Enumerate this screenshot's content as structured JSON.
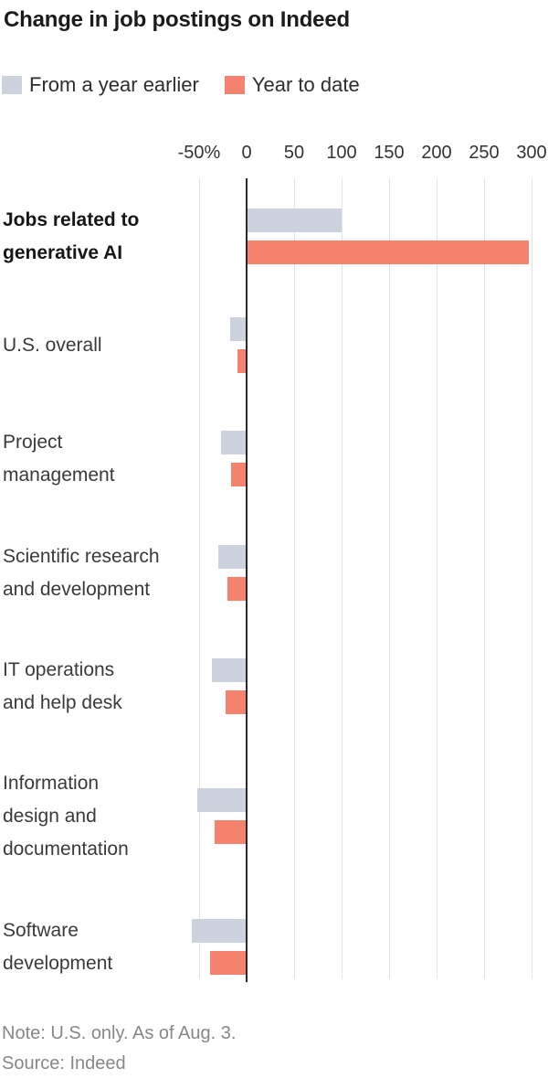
{
  "title": "Change in job postings on Indeed",
  "legend": {
    "items": [
      {
        "label": "From a year earlier",
        "color": "#cdd3de"
      },
      {
        "label": "Year to date",
        "color": "#f4826e"
      }
    ]
  },
  "footnotes": {
    "note": "Note: U.S. only. As of Aug. 3.",
    "source": "Source: Indeed"
  },
  "chart_data": {
    "type": "bar",
    "orientation": "horizontal",
    "title": "Change in job postings on Indeed",
    "unit": "percent change",
    "categories": [
      {
        "lines": [
          "Jobs related to",
          "generative AI"
        ],
        "bold": true
      },
      {
        "lines": [
          "U.S. overall"
        ],
        "bold": false
      },
      {
        "lines": [
          "Project",
          "management"
        ],
        "bold": false
      },
      {
        "lines": [
          "Scientific research",
          "and development"
        ],
        "bold": false
      },
      {
        "lines": [
          "IT operations",
          "and help desk"
        ],
        "bold": false
      },
      {
        "lines": [
          "Information",
          "design and",
          "documentation"
        ],
        "bold": false
      },
      {
        "lines": [
          "Software",
          "development"
        ],
        "bold": false
      }
    ],
    "series": [
      {
        "name": "From a year earlier",
        "color": "#cdd3de",
        "values": [
          100,
          -17,
          -27,
          -30,
          -37,
          -52,
          -58
        ]
      },
      {
        "name": "Year to date",
        "color": "#f4826e",
        "values": [
          297,
          -10,
          -16,
          -20,
          -22,
          -34,
          -38
        ]
      }
    ],
    "x_ticks": [
      {
        "label": "-50%",
        "value": -50
      },
      {
        "label": "0",
        "value": 0
      },
      {
        "label": "50",
        "value": 50
      },
      {
        "label": "100",
        "value": 100
      },
      {
        "label": "150",
        "value": 150
      },
      {
        "label": "200",
        "value": 200
      },
      {
        "label": "250",
        "value": 250
      },
      {
        "label": "300",
        "value": 300
      }
    ],
    "xlim": [
      -60,
      310
    ],
    "grid": "vertical",
    "legend_position": "top",
    "axis_color": "#2a2a2a",
    "gridline_color": "#e3e3e3"
  }
}
